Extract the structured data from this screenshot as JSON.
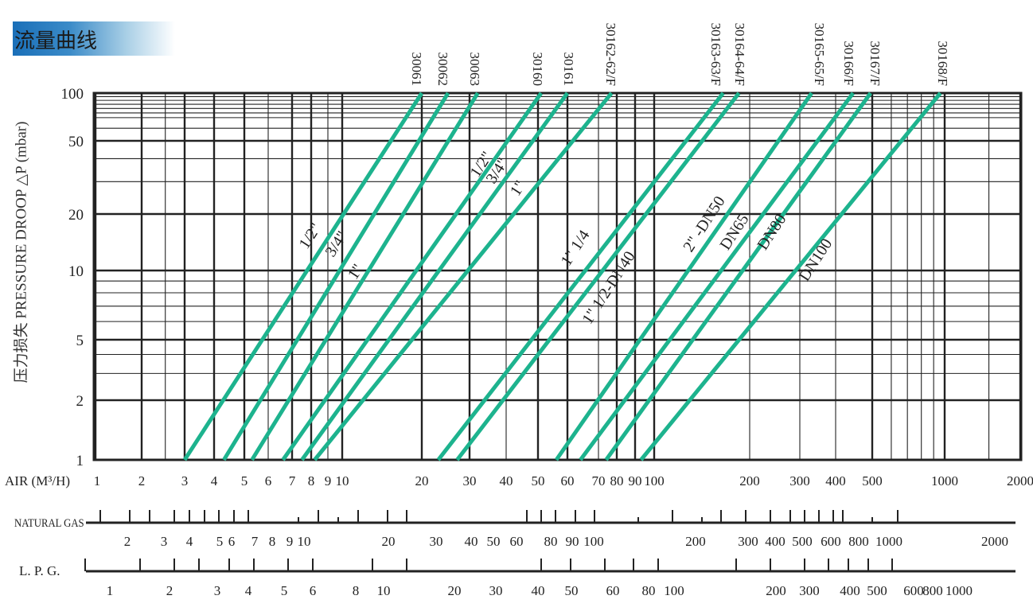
{
  "header": {
    "title": "流量曲线"
  },
  "colors": {
    "curve": "#1db38e",
    "grid": "#222222",
    "title_gradient_start": "#1a6fb8"
  },
  "chart_data": {
    "type": "line",
    "scale": "log-log",
    "grid": true,
    "ylabel": "压力损失 PRESSURE DROOP △P (mbar)",
    "xlabel": "AIR (M³/H)",
    "ylim": [
      1,
      100
    ],
    "xlim": [
      1,
      2000
    ],
    "y_ticks": [
      "100",
      "50",
      "20",
      "10",
      "5",
      "2",
      "1"
    ],
    "x_ticks": [
      "1",
      "2",
      "3",
      "4",
      "5",
      "6",
      "7",
      "8",
      "9",
      "10",
      "20",
      "30",
      "40",
      "50",
      "60",
      "70",
      "80",
      "90",
      "100",
      "200",
      "300",
      "400",
      "500",
      "1000",
      "2000"
    ],
    "series": [
      {
        "name": "30061",
        "x": [
          3.0,
          20
        ],
        "y": [
          1,
          100
        ]
      },
      {
        "name": "30062",
        "x": [
          4.3,
          25
        ],
        "y": [
          1,
          100
        ]
      },
      {
        "name": "30063",
        "x": [
          5.3,
          32
        ],
        "y": [
          1,
          100
        ]
      },
      {
        "name": "30160",
        "x": [
          6.6,
          51
        ],
        "y": [
          1,
          100
        ]
      },
      {
        "name": "30161",
        "x": [
          7.5,
          60
        ],
        "y": [
          1,
          100
        ]
      },
      {
        "name": "30162-62/F",
        "x": [
          8.2,
          77
        ],
        "y": [
          1,
          100
        ]
      },
      {
        "name": "30163-63/F",
        "x": [
          23,
          165
        ],
        "y": [
          1,
          100
        ]
      },
      {
        "name": "30164-64/F",
        "x": [
          27,
          185
        ],
        "y": [
          1,
          100
        ]
      },
      {
        "name": "30165-65/F",
        "x": [
          56,
          330
        ],
        "y": [
          1,
          100
        ]
      },
      {
        "name": "30166/F",
        "x": [
          64,
          445
        ],
        "y": [
          1,
          100
        ]
      },
      {
        "name": "30167/F",
        "x": [
          74,
          495
        ],
        "y": [
          1,
          100
        ]
      },
      {
        "name": "30168/F",
        "x": [
          93,
          960
        ],
        "y": [
          1,
          100
        ]
      }
    ],
    "annotations": [
      "1/2\"",
      "3/4\"",
      "1\"",
      "1/2\"",
      "3/4\"",
      "1\"",
      "1\" 1/4",
      "1\" 1/2-DN40",
      "2\" -DN50",
      "DN65",
      "DN80",
      "DN100"
    ],
    "secondary_scales": [
      {
        "label": "NATURAL GAS",
        "tick_labels": [
          "2",
          "3",
          "4",
          "5",
          "6",
          "7",
          "8",
          "9",
          "10",
          "20",
          "30",
          "40",
          "50",
          "60",
          "80",
          "90",
          "100",
          "200",
          "300",
          "400",
          "500",
          "600",
          "800",
          "1000",
          "2000"
        ]
      },
      {
        "label": "L. P. G.",
        "tick_labels": [
          "1",
          "2",
          "3",
          "4",
          "5",
          "6",
          "8",
          "10",
          "20",
          "30",
          "40",
          "50",
          "60",
          "80",
          "100",
          "200",
          "300",
          "400",
          "500",
          "600",
          "800",
          "1000"
        ]
      }
    ]
  }
}
